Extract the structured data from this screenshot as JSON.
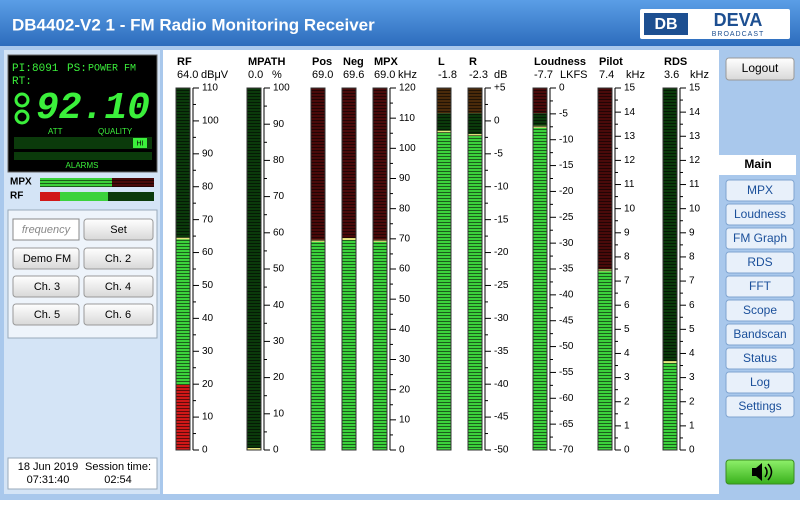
{
  "header": {
    "title": "DB4402-V2 1 - FM Radio Monitoring Receiver",
    "logo": "DEVA",
    "logo_sub": "BROADCAST"
  },
  "display": {
    "pi_label": "PI:",
    "pi": "8091",
    "ps_label": "PS:",
    "ps": "POWER FM",
    "rt": "RT:",
    "frequency": "92.10",
    "att": "ATT",
    "quality": "QUALITY",
    "badge": "HI",
    "alarms": "ALARMS",
    "mpx": "MPX",
    "rf": "RF"
  },
  "controls": {
    "frequency_placeholder": "frequency",
    "set": "Set",
    "buttons": [
      "Demo FM",
      "Ch. 2",
      "Ch. 3",
      "Ch. 4",
      "Ch. 5",
      "Ch. 6"
    ]
  },
  "status": {
    "date": "18 Jun 2019",
    "time": "07:31:40",
    "session_label": "Session time:",
    "session": "02:54"
  },
  "scales": [
    {
      "ticks": [
        "110",
        "100",
        "90",
        "80",
        "70",
        "60",
        "50",
        "40",
        "30",
        "20",
        "10",
        "0"
      ]
    },
    {
      "ticks": [
        "100",
        "90",
        "80",
        "70",
        "60",
        "50",
        "40",
        "30",
        "20",
        "10",
        "0"
      ]
    },
    {
      "ticks": [
        "120",
        "110",
        "100",
        "90",
        "80",
        "70",
        "60",
        "50",
        "40",
        "30",
        "20",
        "10",
        "0"
      ]
    },
    {
      "ticks": [
        "+5",
        "0",
        "-5",
        "-10",
        "-15",
        "-20",
        "-25",
        "-30",
        "-35",
        "-40",
        "-45",
        "-50"
      ]
    },
    {
      "ticks": [
        "0",
        "-5",
        "-10",
        "-15",
        "-20",
        "-25",
        "-30",
        "-35",
        "-40",
        "-45",
        "-50",
        "-55",
        "-60",
        "-65",
        "-70"
      ]
    },
    {
      "ticks": [
        "15",
        "14",
        "13",
        "12",
        "11",
        "10",
        "9",
        "8",
        "7",
        "6",
        "5",
        "4",
        "3",
        "2",
        "1",
        "0"
      ]
    },
    {
      "ticks": [
        "15",
        "14",
        "13",
        "12",
        "11",
        "10",
        "9",
        "8",
        "7",
        "6",
        "5",
        "4",
        "3",
        "2",
        "1",
        "0"
      ]
    }
  ],
  "meters": [
    {
      "label": "RF",
      "value": "64.0",
      "unit": "dBμV"
    },
    {
      "label": "MPATH",
      "value": "0.0",
      "unit": "%"
    },
    {
      "label": "Pos",
      "value": "69.0"
    },
    {
      "label": "Neg",
      "value": "69.6"
    },
    {
      "label": "MPX",
      "value": "69.0",
      "unit": "kHz"
    },
    {
      "label": "L",
      "value": "-1.8"
    },
    {
      "label": "R",
      "value": "-2.3",
      "unit": "dB"
    },
    {
      "label": "Loudness",
      "value": "-7.7",
      "unit": "LKFS"
    },
    {
      "label": "Pilot",
      "value": "7.4",
      "unit": "kHz"
    },
    {
      "label": "RDS",
      "value": "3.6",
      "unit": "kHz"
    }
  ],
  "nav": {
    "logout": "Logout",
    "tabs": [
      "Main",
      "MPX",
      "Loudness",
      "FM Graph",
      "RDS",
      "FFT",
      "Scope",
      "Bandscan",
      "Status",
      "Log",
      "Settings"
    ]
  }
}
